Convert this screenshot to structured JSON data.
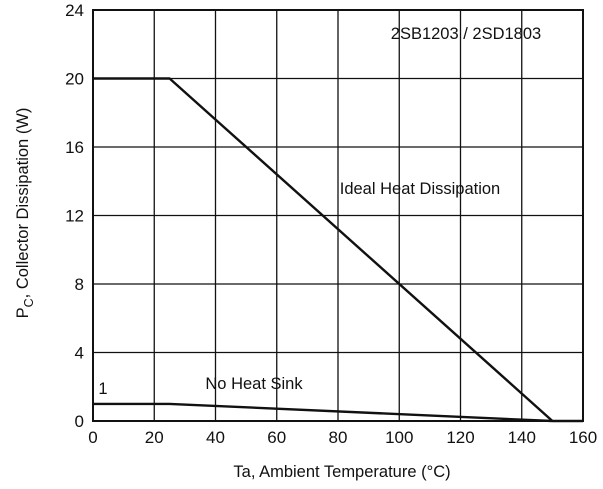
{
  "chart_data": {
    "type": "line",
    "title": "2SB1203 / 2SD1803",
    "xlabel": "Ta, Ambient Temperature (°C)",
    "ylabel": {
      "main": "P",
      "sub": "C",
      "rest": ", Collector Dissipation (W)"
    },
    "xlim": [
      0,
      160
    ],
    "ylim": [
      0,
      24
    ],
    "x_ticks": [
      0,
      20,
      40,
      60,
      80,
      100,
      120,
      140,
      160
    ],
    "x_tick_labels": [
      "0",
      "20",
      "40",
      "60",
      "80",
      "100",
      "120",
      "140",
      "160"
    ],
    "y_ticks": [
      0,
      4,
      8,
      12,
      16,
      20,
      24
    ],
    "y_tick_labels": [
      "0",
      "4",
      "8",
      "12",
      "16",
      "20",
      "24"
    ],
    "grid": true,
    "series": [
      {
        "name": "Ideal Heat Dissipation",
        "x": [
          0,
          25,
          150
        ],
        "y": [
          20,
          20,
          0
        ]
      },
      {
        "name": "No Heat Sink",
        "x": [
          0,
          25,
          150,
          160
        ],
        "y": [
          1,
          1,
          0,
          0
        ]
      }
    ],
    "annotations": [
      {
        "text": "1"
      }
    ]
  }
}
